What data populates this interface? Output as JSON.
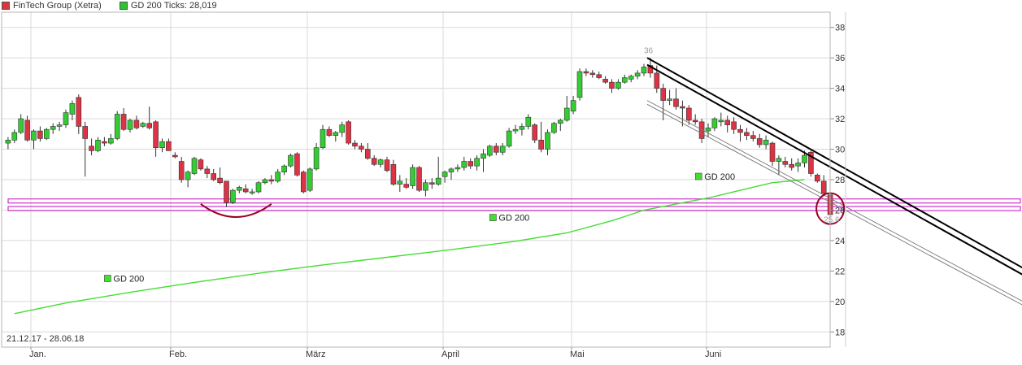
{
  "legend": [
    {
      "label": "FinTech Group (Xetra)",
      "color": "#d43a3a"
    },
    {
      "label": "GD 200 Ticks: 28,019",
      "color": "#2ec42e"
    }
  ],
  "date_range": "21.12.17 - 28.06.18",
  "colors": {
    "up": "#33cc33",
    "down": "#dd3344",
    "ma": "#44dd33",
    "trend": "#000000",
    "support": "#cc33cc",
    "mark": "#990022",
    "grid": "#d9d9d9"
  },
  "chart_data": {
    "type": "candlestick",
    "ylim": [
      17,
      39
    ],
    "y_ticks": [
      18,
      20,
      22,
      24,
      26,
      28,
      30,
      32,
      34,
      36,
      38
    ],
    "x_ticks": [
      "Jan.",
      "Feb.",
      "März",
      "April",
      "Mai",
      "Juni"
    ],
    "annotations": [
      {
        "text": "36",
        "x": 100.5,
        "y": 36.3
      },
      {
        "text": "25,6",
        "x": 128.5,
        "y": 25.2
      },
      {
        "text": "GD 200",
        "x": 16,
        "y": 21.3
      },
      {
        "text": "GD 200",
        "x": 76,
        "y": 25.3
      },
      {
        "text": "GD 200",
        "x": 108,
        "y": 28.0
      }
    ],
    "support_levels": [
      26.6,
      26.1
    ],
    "gd200": [
      [
        2,
        19.2
      ],
      [
        10,
        19.9
      ],
      [
        20,
        20.6
      ],
      [
        30,
        21.25
      ],
      [
        40,
        21.85
      ],
      [
        50,
        22.4
      ],
      [
        60,
        22.9
      ],
      [
        70,
        23.4
      ],
      [
        80,
        23.95
      ],
      [
        88,
        24.5
      ],
      [
        95,
        25.3
      ],
      [
        100,
        26.0
      ],
      [
        110,
        26.8
      ],
      [
        115,
        27.3
      ],
      [
        120,
        27.8
      ],
      [
        125,
        28.0
      ]
    ],
    "candles": [
      [
        1,
        30.4,
        30.8,
        30.0,
        30.6
      ],
      [
        2,
        30.6,
        31.3,
        30.4,
        31.1
      ],
      [
        3,
        31.1,
        32.3,
        31.0,
        32.0
      ],
      [
        4,
        31.9,
        32.2,
        30.5,
        30.6
      ],
      [
        5,
        30.6,
        31.3,
        30.0,
        31.2
      ],
      [
        6,
        31.2,
        31.5,
        30.5,
        30.7
      ],
      [
        7,
        30.7,
        31.4,
        30.6,
        31.3
      ],
      [
        8,
        31.3,
        31.7,
        31.0,
        31.5
      ],
      [
        9,
        31.5,
        31.8,
        31.2,
        31.6
      ],
      [
        10,
        31.6,
        32.6,
        31.4,
        32.4
      ],
      [
        11,
        32.3,
        33.2,
        31.9,
        33.0
      ],
      [
        12,
        33.4,
        33.6,
        31.0,
        31.5
      ],
      [
        13,
        31.5,
        31.8,
        28.2,
        30.7
      ],
      [
        14,
        30.2,
        30.7,
        29.6,
        29.9
      ],
      [
        15,
        29.9,
        30.8,
        29.8,
        30.6
      ],
      [
        16,
        30.5,
        30.8,
        30.2,
        30.4
      ],
      [
        17,
        30.4,
        31.0,
        30.3,
        30.7
      ],
      [
        18,
        30.7,
        32.5,
        30.6,
        32.3
      ],
      [
        19,
        32.3,
        32.7,
        31.2,
        31.3
      ],
      [
        20,
        31.3,
        32.0,
        31.1,
        31.9
      ],
      [
        21,
        31.9,
        32.2,
        31.3,
        31.4
      ],
      [
        22,
        31.5,
        31.8,
        31.4,
        31.7
      ],
      [
        23,
        31.7,
        32.8,
        31.3,
        31.4
      ],
      [
        24,
        31.8,
        31.9,
        29.5,
        30.1
      ],
      [
        25,
        30.1,
        30.7,
        29.8,
        30.5
      ],
      [
        26,
        30.5,
        30.7,
        29.9,
        29.9
      ],
      [
        27,
        29.6,
        29.8,
        29.4,
        29.5
      ],
      [
        28,
        29.2,
        29.5,
        27.8,
        28.0
      ],
      [
        29,
        28.0,
        28.6,
        27.5,
        28.5
      ],
      [
        30,
        28.4,
        29.5,
        28.3,
        29.4
      ],
      [
        31,
        29.3,
        29.4,
        28.6,
        28.7
      ],
      [
        32,
        28.7,
        28.9,
        28.1,
        28.4
      ],
      [
        33,
        28.4,
        28.7,
        27.9,
        28.0
      ],
      [
        34,
        28.1,
        28.8,
        27.7,
        27.8
      ],
      [
        35,
        27.9,
        27.9,
        26.2,
        26.5
      ],
      [
        36,
        26.5,
        27.4,
        26.4,
        27.3
      ],
      [
        37,
        27.3,
        27.6,
        27.1,
        27.5
      ],
      [
        38,
        27.4,
        27.7,
        27.1,
        27.2
      ],
      [
        39,
        27.2,
        27.4,
        27.0,
        27.2
      ],
      [
        40,
        27.2,
        27.9,
        27.1,
        27.8
      ],
      [
        41,
        27.8,
        28.1,
        27.7,
        28.0
      ],
      [
        42,
        28.0,
        28.3,
        27.7,
        27.9
      ],
      [
        43,
        27.9,
        28.7,
        27.8,
        28.5
      ],
      [
        44,
        28.5,
        29.0,
        28.3,
        28.9
      ],
      [
        45,
        28.9,
        29.7,
        28.8,
        29.6
      ],
      [
        46,
        29.7,
        29.8,
        28.2,
        28.3
      ],
      [
        47,
        28.5,
        28.6,
        27.1,
        27.2
      ],
      [
        48,
        27.3,
        28.8,
        27.2,
        28.7
      ],
      [
        49,
        28.7,
        30.4,
        28.6,
        30.1
      ],
      [
        50,
        30.1,
        31.6,
        30.0,
        31.3
      ],
      [
        51,
        31.3,
        31.5,
        30.8,
        30.9
      ],
      [
        52,
        30.9,
        31.2,
        30.5,
        31.1
      ],
      [
        53,
        31.1,
        31.8,
        30.8,
        31.6
      ],
      [
        54,
        31.8,
        31.9,
        30.3,
        30.4
      ],
      [
        55,
        30.4,
        30.6,
        30.0,
        30.2
      ],
      [
        56,
        30.2,
        30.4,
        29.8,
        30.0
      ],
      [
        57,
        30.0,
        30.4,
        29.3,
        29.4
      ],
      [
        58,
        29.4,
        29.6,
        28.9,
        29.0
      ],
      [
        59,
        29.0,
        29.4,
        28.8,
        29.3
      ],
      [
        60,
        29.3,
        29.5,
        28.5,
        28.6
      ],
      [
        61,
        29.0,
        29.3,
        27.6,
        27.7
      ],
      [
        62,
        27.7,
        28.3,
        27.2,
        27.9
      ],
      [
        63,
        27.7,
        28.1,
        27.4,
        27.5
      ],
      [
        64,
        27.6,
        29.0,
        27.4,
        28.8
      ],
      [
        65,
        28.8,
        28.9,
        27.2,
        27.3
      ],
      [
        66,
        27.3,
        28.0,
        26.9,
        27.8
      ],
      [
        67,
        27.8,
        28.1,
        27.4,
        27.7
      ],
      [
        68,
        27.7,
        29.5,
        27.6,
        28.1
      ],
      [
        69,
        28.2,
        28.6,
        27.8,
        28.5
      ],
      [
        70,
        28.5,
        28.8,
        28.0,
        28.7
      ],
      [
        71,
        28.7,
        29.0,
        28.5,
        28.8
      ],
      [
        72,
        28.8,
        29.5,
        28.6,
        29.2
      ],
      [
        73,
        29.2,
        29.4,
        28.7,
        28.9
      ],
      [
        74,
        28.9,
        29.6,
        28.6,
        29.4
      ],
      [
        75,
        29.4,
        30.0,
        28.5,
        29.7
      ],
      [
        76,
        29.6,
        30.3,
        29.5,
        30.2
      ],
      [
        77,
        30.2,
        30.4,
        29.6,
        29.8
      ],
      [
        78,
        29.8,
        30.4,
        29.6,
        30.2
      ],
      [
        79,
        30.2,
        31.4,
        30.1,
        31.2
      ],
      [
        80,
        31.2,
        31.6,
        31.0,
        31.3
      ],
      [
        81,
        31.3,
        31.7,
        30.9,
        31.5
      ],
      [
        82,
        31.5,
        32.3,
        31.3,
        32.1
      ],
      [
        83,
        31.6,
        31.7,
        30.4,
        30.6
      ],
      [
        84,
        30.6,
        31.8,
        29.8,
        30.0
      ],
      [
        85,
        30.0,
        31.3,
        29.6,
        31.1
      ],
      [
        86,
        31.1,
        31.8,
        31.0,
        31.7
      ],
      [
        87,
        31.7,
        32.0,
        31.2,
        31.9
      ],
      [
        88,
        31.9,
        33.5,
        31.8,
        32.7
      ],
      [
        89,
        32.5,
        33.5,
        32.3,
        33.2
      ],
      [
        90,
        33.4,
        35.3,
        33.2,
        35.1
      ],
      [
        91,
        35.1,
        35.3,
        34.8,
        35.0
      ],
      [
        92,
        35.0,
        35.2,
        34.7,
        34.9
      ],
      [
        93,
        34.9,
        35.1,
        34.6,
        34.7
      ],
      [
        94,
        34.6,
        34.8,
        34.3,
        34.4
      ],
      [
        95,
        34.4,
        34.6,
        33.7,
        34.0
      ],
      [
        96,
        34.0,
        34.6,
        33.9,
        34.4
      ],
      [
        97,
        34.4,
        34.9,
        34.3,
        34.7
      ],
      [
        98,
        34.6,
        34.9,
        34.4,
        34.8
      ],
      [
        99,
        34.8,
        35.2,
        34.6,
        35.0
      ],
      [
        100,
        35.0,
        35.6,
        34.8,
        35.4
      ],
      [
        101,
        35.5,
        36.0,
        34.7,
        35.0
      ],
      [
        102,
        35.0,
        35.5,
        33.7,
        34.0
      ],
      [
        103,
        34.0,
        34.3,
        31.9,
        33.2
      ],
      [
        104,
        33.2,
        33.9,
        32.9,
        33.3
      ],
      [
        105,
        33.3,
        34.0,
        32.6,
        32.8
      ],
      [
        106,
        32.8,
        33.2,
        31.5,
        32.7
      ],
      [
        107,
        32.7,
        32.9,
        31.6,
        31.9
      ],
      [
        108,
        31.9,
        32.3,
        31.6,
        31.8
      ],
      [
        109,
        31.8,
        32.0,
        30.4,
        30.7
      ],
      [
        110,
        31.2,
        31.7,
        30.8,
        31.4
      ],
      [
        111,
        31.4,
        32.1,
        31.2,
        32.0
      ],
      [
        112,
        31.8,
        32.4,
        31.5,
        31.9
      ],
      [
        113,
        31.9,
        32.2,
        31.1,
        31.6
      ],
      [
        114,
        31.8,
        32.1,
        31.0,
        31.3
      ],
      [
        115,
        31.3,
        31.6,
        30.5,
        31.1
      ],
      [
        116,
        31.1,
        31.4,
        30.6,
        30.9
      ],
      [
        117,
        30.9,
        31.2,
        30.5,
        30.7
      ],
      [
        118,
        30.7,
        31.0,
        30.1,
        30.3
      ],
      [
        119,
        30.3,
        30.9,
        30.0,
        30.6
      ],
      [
        120,
        30.4,
        30.5,
        28.9,
        29.2
      ],
      [
        121,
        29.2,
        29.6,
        28.3,
        29.4
      ],
      [
        122,
        29.2,
        29.5,
        28.8,
        29.0
      ],
      [
        123,
        29.0,
        29.4,
        28.6,
        28.8
      ],
      [
        124,
        28.9,
        29.4,
        28.5,
        29.1
      ],
      [
        125,
        29.1,
        29.9,
        28.8,
        29.6
      ],
      [
        126,
        29.8,
        29.9,
        28.2,
        28.4
      ],
      [
        127,
        28.3,
        28.4,
        27.8,
        27.9
      ],
      [
        128,
        27.9,
        28.3,
        26.9,
        27.1
      ],
      [
        129,
        27.0,
        27.2,
        25.6,
        25.7
      ]
    ]
  }
}
